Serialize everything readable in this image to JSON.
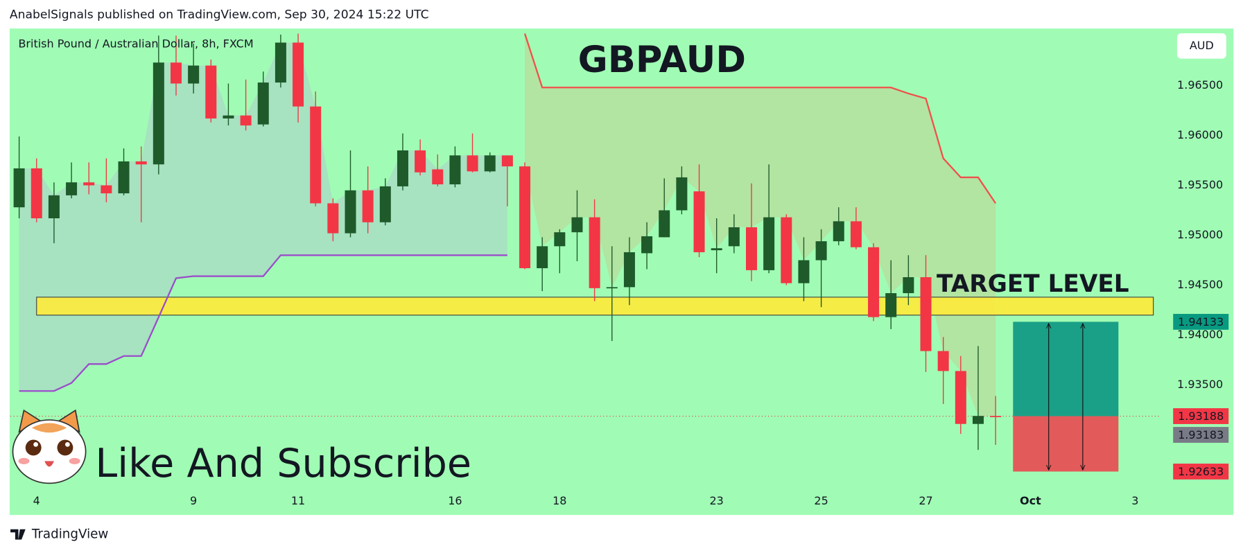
{
  "header": "AnabelSignals published on TradingView.com, Sep 30, 2024 15:22 UTC",
  "footer": "TradingView",
  "chart_data": {
    "type": "candlestick",
    "title": "GBPAUD",
    "subtitle": "British Pound / Australian Dollar, 8h, FXCM",
    "currency": "AUD",
    "cta": "Like And Subscribe",
    "up_color": "#1e5a2a",
    "down_color": "#f23645",
    "open": [
      1.9528,
      1.9567,
      1.9517,
      1.954,
      1.9553,
      1.955,
      1.9542,
      1.9574,
      1.9571,
      1.9673,
      1.9652,
      1.967,
      1.9617,
      1.962,
      1.9611,
      1.9653,
      1.9693,
      1.9629,
      1.9532,
      1.9502,
      1.9545,
      1.9513,
      1.9549,
      1.9585,
      1.9566,
      1.9551,
      1.958,
      1.9564,
      1.958,
      1.9569,
      1.9467,
      1.9489,
      1.9503,
      1.9518,
      1.9448,
      1.9448,
      1.9482,
      1.9498,
      1.9525,
      1.9544,
      1.9485,
      1.9489,
      1.9508,
      1.9465,
      1.9518,
      1.9452,
      1.9475,
      1.9494,
      1.9514,
      1.9488,
      1.9418,
      1.9442,
      1.9458,
      1.9384,
      1.9364,
      1.9311,
      1.9319
    ],
    "high": [
      1.9599,
      1.9577,
      1.9553,
      1.9573,
      1.9573,
      1.9577,
      1.9587,
      1.9589,
      1.97,
      1.97,
      1.9692,
      1.9676,
      1.9652,
      1.9656,
      1.9664,
      1.9701,
      1.9702,
      1.9644,
      1.9537,
      1.9585,
      1.9569,
      1.9557,
      1.9602,
      1.9596,
      1.9581,
      1.9589,
      1.9602,
      1.9583,
      1.958,
      1.9573,
      1.9498,
      1.9506,
      1.9545,
      1.9536,
      1.9489,
      1.9498,
      1.9513,
      1.9557,
      1.9569,
      1.9571,
      1.9517,
      1.9521,
      1.9552,
      1.9571,
      1.9521,
      1.9498,
      1.9506,
      1.9528,
      1.9528,
      1.9492,
      1.9475,
      1.948,
      1.948,
      1.9398,
      1.9379,
      1.9389,
      1.9339
    ],
    "low": [
      1.9517,
      1.9513,
      1.9492,
      1.9537,
      1.9541,
      1.9533,
      1.954,
      1.9513,
      1.9561,
      1.964,
      1.9642,
      1.9613,
      1.961,
      1.9605,
      1.9609,
      1.9648,
      1.9613,
      1.9529,
      1.9494,
      1.9498,
      1.9502,
      1.951,
      1.9545,
      1.956,
      1.9549,
      1.9548,
      1.9563,
      1.9563,
      1.9529,
      1.9466,
      1.9444,
      1.9462,
      1.9474,
      1.9434,
      1.9394,
      1.943,
      1.9466,
      1.9498,
      1.9521,
      1.9478,
      1.9462,
      1.9482,
      1.9454,
      1.9462,
      1.945,
      1.9434,
      1.9428,
      1.949,
      1.9486,
      1.9414,
      1.9406,
      1.943,
      1.9363,
      1.9331,
      1.9301,
      1.9285,
      1.929
    ],
    "close": [
      1.9567,
      1.9517,
      1.954,
      1.9553,
      1.955,
      1.9542,
      1.9574,
      1.9571,
      1.9673,
      1.9652,
      1.967,
      1.9617,
      1.962,
      1.961,
      1.9653,
      1.9693,
      1.9629,
      1.9532,
      1.9502,
      1.9545,
      1.9513,
      1.9549,
      1.9585,
      1.9563,
      1.9551,
      1.958,
      1.9564,
      1.958,
      1.9569,
      1.9467,
      1.9489,
      1.9503,
      1.9518,
      1.9447,
      1.9448,
      1.9483,
      1.9499,
      1.9525,
      1.9558,
      1.9483,
      1.9487,
      1.9508,
      1.9465,
      1.9518,
      1.9452,
      1.9475,
      1.9494,
      1.9514,
      1.9488,
      1.9418,
      1.9442,
      1.9458,
      1.9384,
      1.9364,
      1.9311,
      1.9319,
      1.9318
    ],
    "overlays": [
      {
        "color": "#9b4dca",
        "fill": "#a9d9c6",
        "values": [
          1.9344,
          1.9344,
          1.9344,
          1.9352,
          1.9371,
          1.9371,
          1.9379,
          1.9379,
          1.9418,
          1.9457,
          1.9459,
          1.9459,
          1.9459,
          1.9459,
          1.9459,
          1.948,
          1.948,
          1.948,
          1.948,
          1.948,
          1.948,
          1.948,
          1.948,
          1.948,
          1.948,
          1.948,
          1.948,
          1.948,
          1.948,
          null,
          null,
          null,
          null,
          null,
          null,
          null,
          null,
          null,
          null,
          null,
          null,
          null,
          null,
          null,
          null,
          null,
          null,
          null,
          null,
          null,
          null,
          null,
          null,
          null,
          null,
          null,
          null
        ]
      },
      {
        "color": "#f0504b",
        "fill": "#b8dc9c",
        "values": [
          null,
          null,
          null,
          null,
          null,
          null,
          null,
          null,
          null,
          null,
          null,
          null,
          null,
          null,
          null,
          null,
          null,
          null,
          null,
          null,
          null,
          null,
          null,
          null,
          null,
          null,
          null,
          null,
          null,
          1.9702,
          1.9648,
          1.9648,
          1.9648,
          1.9648,
          1.9648,
          1.9648,
          1.9648,
          1.9648,
          1.9648,
          1.9648,
          1.9648,
          1.9648,
          1.9648,
          1.9648,
          1.9648,
          1.9648,
          1.9648,
          1.9648,
          1.9648,
          1.9648,
          1.9648,
          1.9642,
          1.9637,
          1.9577,
          1.9558,
          1.9558,
          1.9532
        ]
      }
    ],
    "zone": {
      "range": [
        1.942,
        1.9438
      ],
      "color": "#ffeb3b",
      "label": "TARGET LEVEL"
    },
    "position": {
      "target": 1.94133,
      "entry": 1.93188,
      "stop": 1.92633,
      "profit_color": "#1aa087",
      "loss_color": "#e35a5a",
      "target_color": "#089981",
      "stop_color": "#f23645"
    },
    "last_price": 1.93188,
    "last_price_color": "#f23645",
    "prev_price": 1.93183,
    "prev_price_color": "#787b86",
    "ylim": [
      1.92198,
      1.97071
    ],
    "yticks": [
      {
        "value": 1.935,
        "label": "1.93500"
      },
      {
        "value": 1.94,
        "label": "1.94000"
      },
      {
        "value": 1.945,
        "label": "1.94500"
      },
      {
        "value": 1.95,
        "label": "1.95000"
      },
      {
        "value": 1.955,
        "label": "1.95500"
      },
      {
        "value": 1.96,
        "label": "1.96000"
      },
      {
        "value": 1.965,
        "label": "1.96500"
      }
    ],
    "xlim": [
      -0.5,
      65.5
    ],
    "xticks": [
      {
        "value": 1,
        "label": "4"
      },
      {
        "value": 10,
        "label": "9"
      },
      {
        "value": 16,
        "label": "11"
      },
      {
        "value": 25,
        "label": "16"
      },
      {
        "value": 31,
        "label": "18"
      },
      {
        "value": 40,
        "label": "23"
      },
      {
        "value": 46,
        "label": "25"
      },
      {
        "value": 52,
        "label": "27"
      },
      {
        "value": 58,
        "label": "Oct"
      },
      {
        "value": 64,
        "label": "3"
      }
    ]
  }
}
